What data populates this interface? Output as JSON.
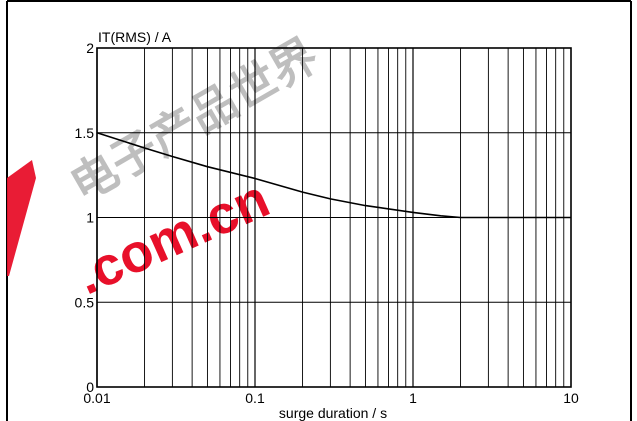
{
  "chart_data": {
    "type": "line",
    "title": "",
    "ylabel": "IT(RMS) / A",
    "xlabel": "surge duration / s",
    "xscale": "log",
    "xlim": [
      0.01,
      10
    ],
    "ylim": [
      0,
      2
    ],
    "grid": true,
    "x_ticks": [
      {
        "value": 0.01,
        "label": "0.01"
      },
      {
        "value": 0.1,
        "label": "0.1"
      },
      {
        "value": 1,
        "label": "1"
      },
      {
        "value": 10,
        "label": "10"
      }
    ],
    "y_ticks": [
      {
        "value": 0,
        "label": "0"
      },
      {
        "value": 0.5,
        "label": "0.5"
      },
      {
        "value": 1,
        "label": "1"
      },
      {
        "value": 1.5,
        "label": "1.5"
      },
      {
        "value": 2,
        "label": "2"
      }
    ],
    "series": [
      {
        "x": [
          0.01,
          0.02,
          0.03,
          0.05,
          0.1,
          0.2,
          0.3,
          0.5,
          1,
          1.5,
          2,
          3,
          5,
          10
        ],
        "y": [
          1.5,
          1.41,
          1.36,
          1.3,
          1.23,
          1.15,
          1.11,
          1.07,
          1.03,
          1.01,
          1.0,
          1.0,
          1.0,
          1.0
        ]
      }
    ],
    "colors": {
      "line": "#000000",
      "grid": "#000000",
      "frame": "#000000"
    }
  },
  "watermark": {
    "text": "电子产品世界 .com.cn",
    "colors": {
      "red": "#e8102a",
      "grey": "#888888"
    }
  }
}
